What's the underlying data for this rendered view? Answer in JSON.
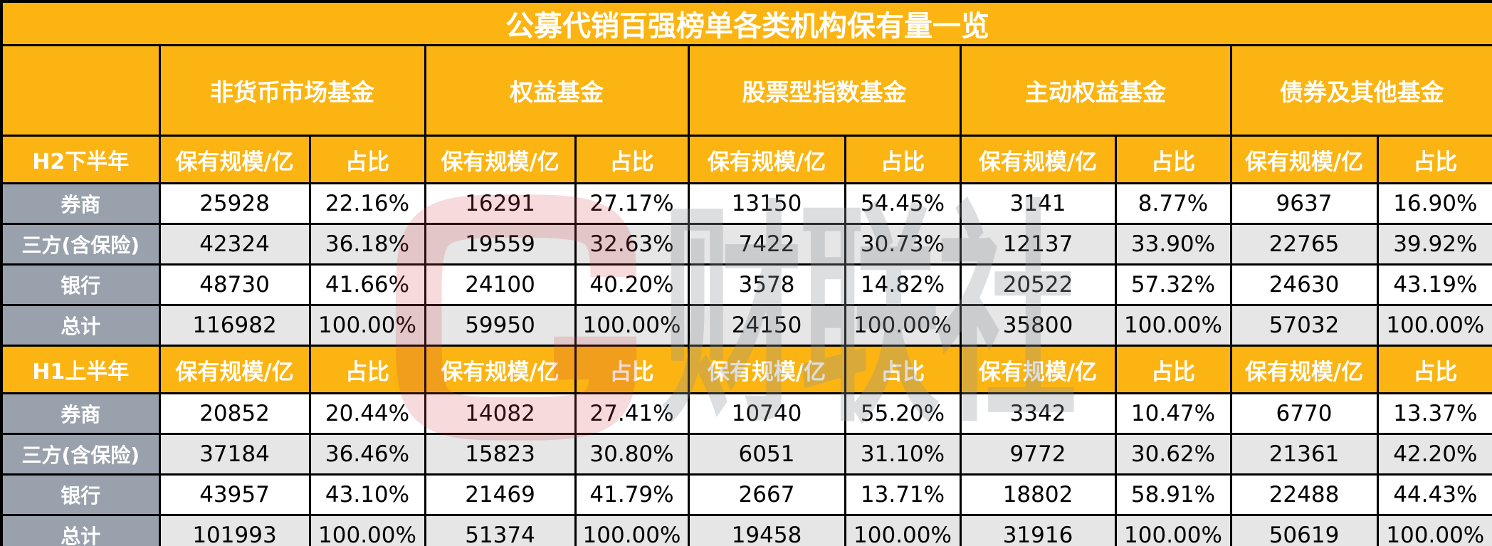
{
  "chart_data": {
    "type": "table",
    "title": "公募代销百强榜单各类机构保有量一览",
    "column_groups": [
      "非货币市场基金",
      "权益基金",
      "股票型指数基金",
      "主动权益基金",
      "债券及其他基金"
    ],
    "sub_columns": {
      "scale": "保有规模/亿",
      "share": "占比"
    },
    "sections": [
      {
        "period": "H2下半年",
        "rows": [
          {
            "label": "券商",
            "values": [
              "25928",
              "22.16%",
              "16291",
              "27.17%",
              "13150",
              "54.45%",
              "3141",
              "8.77%",
              "9637",
              "16.90%"
            ]
          },
          {
            "label": "三方(含保险)",
            "values": [
              "42324",
              "36.18%",
              "19559",
              "32.63%",
              "7422",
              "30.73%",
              "12137",
              "33.90%",
              "22765",
              "39.92%"
            ]
          },
          {
            "label": "银行",
            "values": [
              "48730",
              "41.66%",
              "24100",
              "40.20%",
              "3578",
              "14.82%",
              "20522",
              "57.32%",
              "24630",
              "43.19%"
            ]
          },
          {
            "label": "总计",
            "values": [
              "116982",
              "100.00%",
              "59950",
              "100.00%",
              "24150",
              "100.00%",
              "35800",
              "100.00%",
              "57032",
              "100.00%"
            ]
          }
        ]
      },
      {
        "period": "H1上半年",
        "rows": [
          {
            "label": "券商",
            "values": [
              "20852",
              "20.44%",
              "14082",
              "27.41%",
              "10740",
              "55.20%",
              "3342",
              "10.47%",
              "6770",
              "13.37%"
            ]
          },
          {
            "label": "三方(含保险)",
            "values": [
              "37184",
              "36.46%",
              "15823",
              "30.80%",
              "6051",
              "31.10%",
              "9772",
              "30.62%",
              "21361",
              "42.20%"
            ]
          },
          {
            "label": "银行",
            "values": [
              "43957",
              "43.10%",
              "21469",
              "41.79%",
              "2667",
              "13.71%",
              "18802",
              "58.91%",
              "22488",
              "44.43%"
            ]
          },
          {
            "label": "总计",
            "values": [
              "101993",
              "100.00%",
              "51374",
              "100.00%",
              "19458",
              "100.00%",
              "31916",
              "100.00%",
              "50619",
              "100.00%"
            ]
          }
        ]
      }
    ]
  },
  "watermark": {
    "logo": "cailianshe-logo",
    "text": "财联社"
  },
  "colors": {
    "header_yellow": "#FBB411",
    "label_gray": "#99A1AC",
    "row_alt_gray": "#E6E6E6",
    "row_white": "#FFFFFF",
    "border_black": "#000000",
    "watermark_red": "#D04550",
    "watermark_gray": "#8E9399"
  }
}
